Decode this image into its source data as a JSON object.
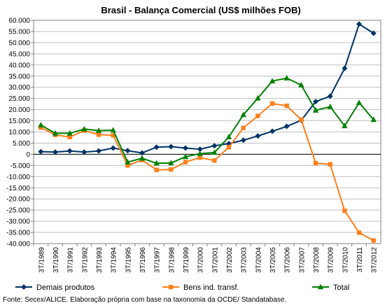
{
  "chart_data": {
    "type": "line",
    "title": "Brasil - Balança Comercial (US$ milhões FOB)",
    "source": "Fonte: Secex/ALICE. Elaboração própria com base na taxonomia da OCDE/ Standatabase.",
    "categories": [
      "3T/1989",
      "3T/1990",
      "3T/1991",
      "3T/1992",
      "3T/1993",
      "3T/1994",
      "3T/1995",
      "3T/1996",
      "3T/1997",
      "3T/1998",
      "3T/1999",
      "3T/2000",
      "3T/2001",
      "3T/2002",
      "3T/2003",
      "3T/2004",
      "3T/2005",
      "3T/2006",
      "3T/2007",
      "3T/2008",
      "3T/2009",
      "3T/2010",
      "3T/2011",
      "3T/2012"
    ],
    "ylim": [
      -40000,
      60000
    ],
    "yticks": [
      60000,
      55000,
      50000,
      45000,
      40000,
      35000,
      30000,
      25000,
      20000,
      15000,
      10000,
      5000,
      0,
      -5000,
      -10000,
      -15000,
      -20000,
      -25000,
      -30000,
      -35000,
      -40000
    ],
    "ytick_labels": [
      "60.000",
      "55.000",
      "50.000",
      "45.000",
      "40.000",
      "35.000",
      "30.000",
      "25.000",
      "20.000",
      "15.000",
      "10.000",
      "5.000",
      "0",
      "-5.000",
      "-10.000",
      "-15.000",
      "-20.000",
      "-25.000",
      "-30.000",
      "-35.000",
      "-40.000"
    ],
    "grid": true,
    "legend_position": "bottom",
    "series": [
      {
        "name": "Demais produtos",
        "color": "#003366",
        "marker": "diamond",
        "values": [
          1200,
          1000,
          1500,
          1000,
          1500,
          2800,
          1600,
          600,
          3200,
          3400,
          2800,
          2300,
          3800,
          4800,
          6300,
          8200,
          10300,
          12500,
          15200,
          23600,
          26000,
          38500,
          58300,
          54200
        ]
      },
      {
        "name": "Bens ind. transf.",
        "color": "#ff7f1a",
        "marker": "square",
        "values": [
          12000,
          8700,
          7700,
          10600,
          8800,
          8500,
          -5000,
          -2600,
          -7000,
          -6800,
          -3500,
          -1500,
          -2800,
          3200,
          11800,
          17200,
          22700,
          21700,
          15500,
          -4000,
          -4500,
          -25300,
          -35100,
          -38600
        ]
      },
      {
        "name": "Total",
        "color": "#008000",
        "marker": "triangle",
        "values": [
          13100,
          9400,
          9400,
          11300,
          10600,
          10800,
          -3500,
          -1800,
          -4000,
          -3900,
          -1100,
          300,
          800,
          7800,
          17700,
          25100,
          32800,
          34100,
          31000,
          19700,
          21300,
          12700,
          23100,
          15500
        ]
      }
    ]
  }
}
